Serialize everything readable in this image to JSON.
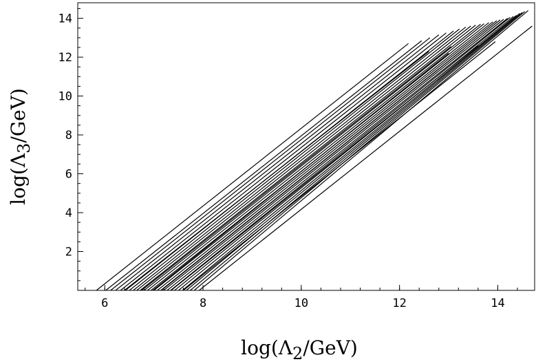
{
  "chart_data": {
    "type": "line",
    "title": "",
    "xlabel": {
      "prefix": "log(Λ",
      "sub": "2",
      "suffix": "/GeV)"
    },
    "ylabel": {
      "prefix": "log(Λ",
      "sub": "3",
      "suffix": "/GeV)"
    },
    "xlim": [
      5.45,
      14.75
    ],
    "ylim": [
      0,
      14.8
    ],
    "x_ticks": [
      6,
      8,
      10,
      12,
      14
    ],
    "y_ticks": [
      2,
      4,
      6,
      8,
      10,
      12,
      14
    ],
    "grid": false,
    "legend": "none",
    "series": [
      {
        "x": [
          5.83,
          12.18
        ],
        "y": [
          0,
          12.7
        ]
      },
      {
        "x": [
          6.02,
          12.45
        ],
        "y": [
          0,
          12.85
        ]
      },
      {
        "x": [
          6.12,
          12.62
        ],
        "y": [
          0,
          13.0
        ]
      },
      {
        "x": [
          6.22,
          12.8
        ],
        "y": [
          0,
          13.15
        ]
      },
      {
        "x": [
          6.32,
          12.95
        ],
        "y": [
          0,
          13.25
        ]
      },
      {
        "x": [
          6.42,
          13.1
        ],
        "y": [
          0,
          13.35
        ]
      },
      {
        "x": [
          6.5,
          13.22
        ],
        "y": [
          0,
          13.45
        ]
      },
      {
        "x": [
          6.58,
          13.35
        ],
        "y": [
          0,
          13.55
        ]
      },
      {
        "x": [
          6.65,
          13.45
        ],
        "y": [
          0,
          13.6
        ]
      },
      {
        "x": [
          6.72,
          13.55
        ],
        "y": [
          0,
          13.65
        ]
      },
      {
        "x": [
          6.8,
          13.65
        ],
        "y": [
          0,
          13.7
        ]
      },
      {
        "x": [
          6.87,
          13.72
        ],
        "y": [
          0,
          13.72
        ]
      },
      {
        "x": [
          6.94,
          13.82
        ],
        "y": [
          0,
          13.78
        ]
      },
      {
        "x": [
          7.0,
          13.9
        ],
        "y": [
          0,
          13.82
        ]
      },
      {
        "x": [
          7.07,
          13.98
        ],
        "y": [
          0,
          13.88
        ]
      },
      {
        "x": [
          7.14,
          14.05
        ],
        "y": [
          0,
          13.92
        ]
      },
      {
        "x": [
          7.2,
          14.12
        ],
        "y": [
          0,
          13.95
        ]
      },
      {
        "x": [
          7.27,
          14.2
        ],
        "y": [
          0,
          14.0
        ]
      },
      {
        "x": [
          7.34,
          14.25
        ],
        "y": [
          0,
          14.05
        ]
      },
      {
        "x": [
          7.42,
          14.32
        ],
        "y": [
          0,
          14.1
        ]
      },
      {
        "x": [
          7.5,
          14.38
        ],
        "y": [
          0,
          14.15
        ]
      },
      {
        "x": [
          7.58,
          14.45
        ],
        "y": [
          0,
          14.25
        ]
      },
      {
        "x": [
          7.66,
          14.5
        ],
        "y": [
          0,
          14.3
        ]
      },
      {
        "x": [
          7.74,
          14.55
        ],
        "y": [
          0,
          14.35
        ]
      },
      {
        "x": [
          7.82,
          14.62
        ],
        "y": [
          0,
          14.4
        ]
      },
      {
        "x": [
          7.92,
          14.7
        ],
        "y": [
          0,
          13.6
        ]
      },
      {
        "x": [
          6.98,
          13.0
        ],
        "y": [
          0,
          12.2
        ]
      },
      {
        "x": [
          7.15,
          13.3
        ],
        "y": [
          0,
          12.4
        ]
      },
      {
        "x": [
          7.35,
          13.6
        ],
        "y": [
          0,
          12.6
        ]
      },
      {
        "x": [
          7.6,
          13.95
        ],
        "y": [
          0,
          12.8
        ]
      },
      {
        "x": [
          6.4,
          12.6
        ],
        "y": [
          0,
          12.3
        ]
      },
      {
        "x": [
          6.75,
          13.05
        ],
        "y": [
          0,
          12.55
        ]
      }
    ]
  }
}
